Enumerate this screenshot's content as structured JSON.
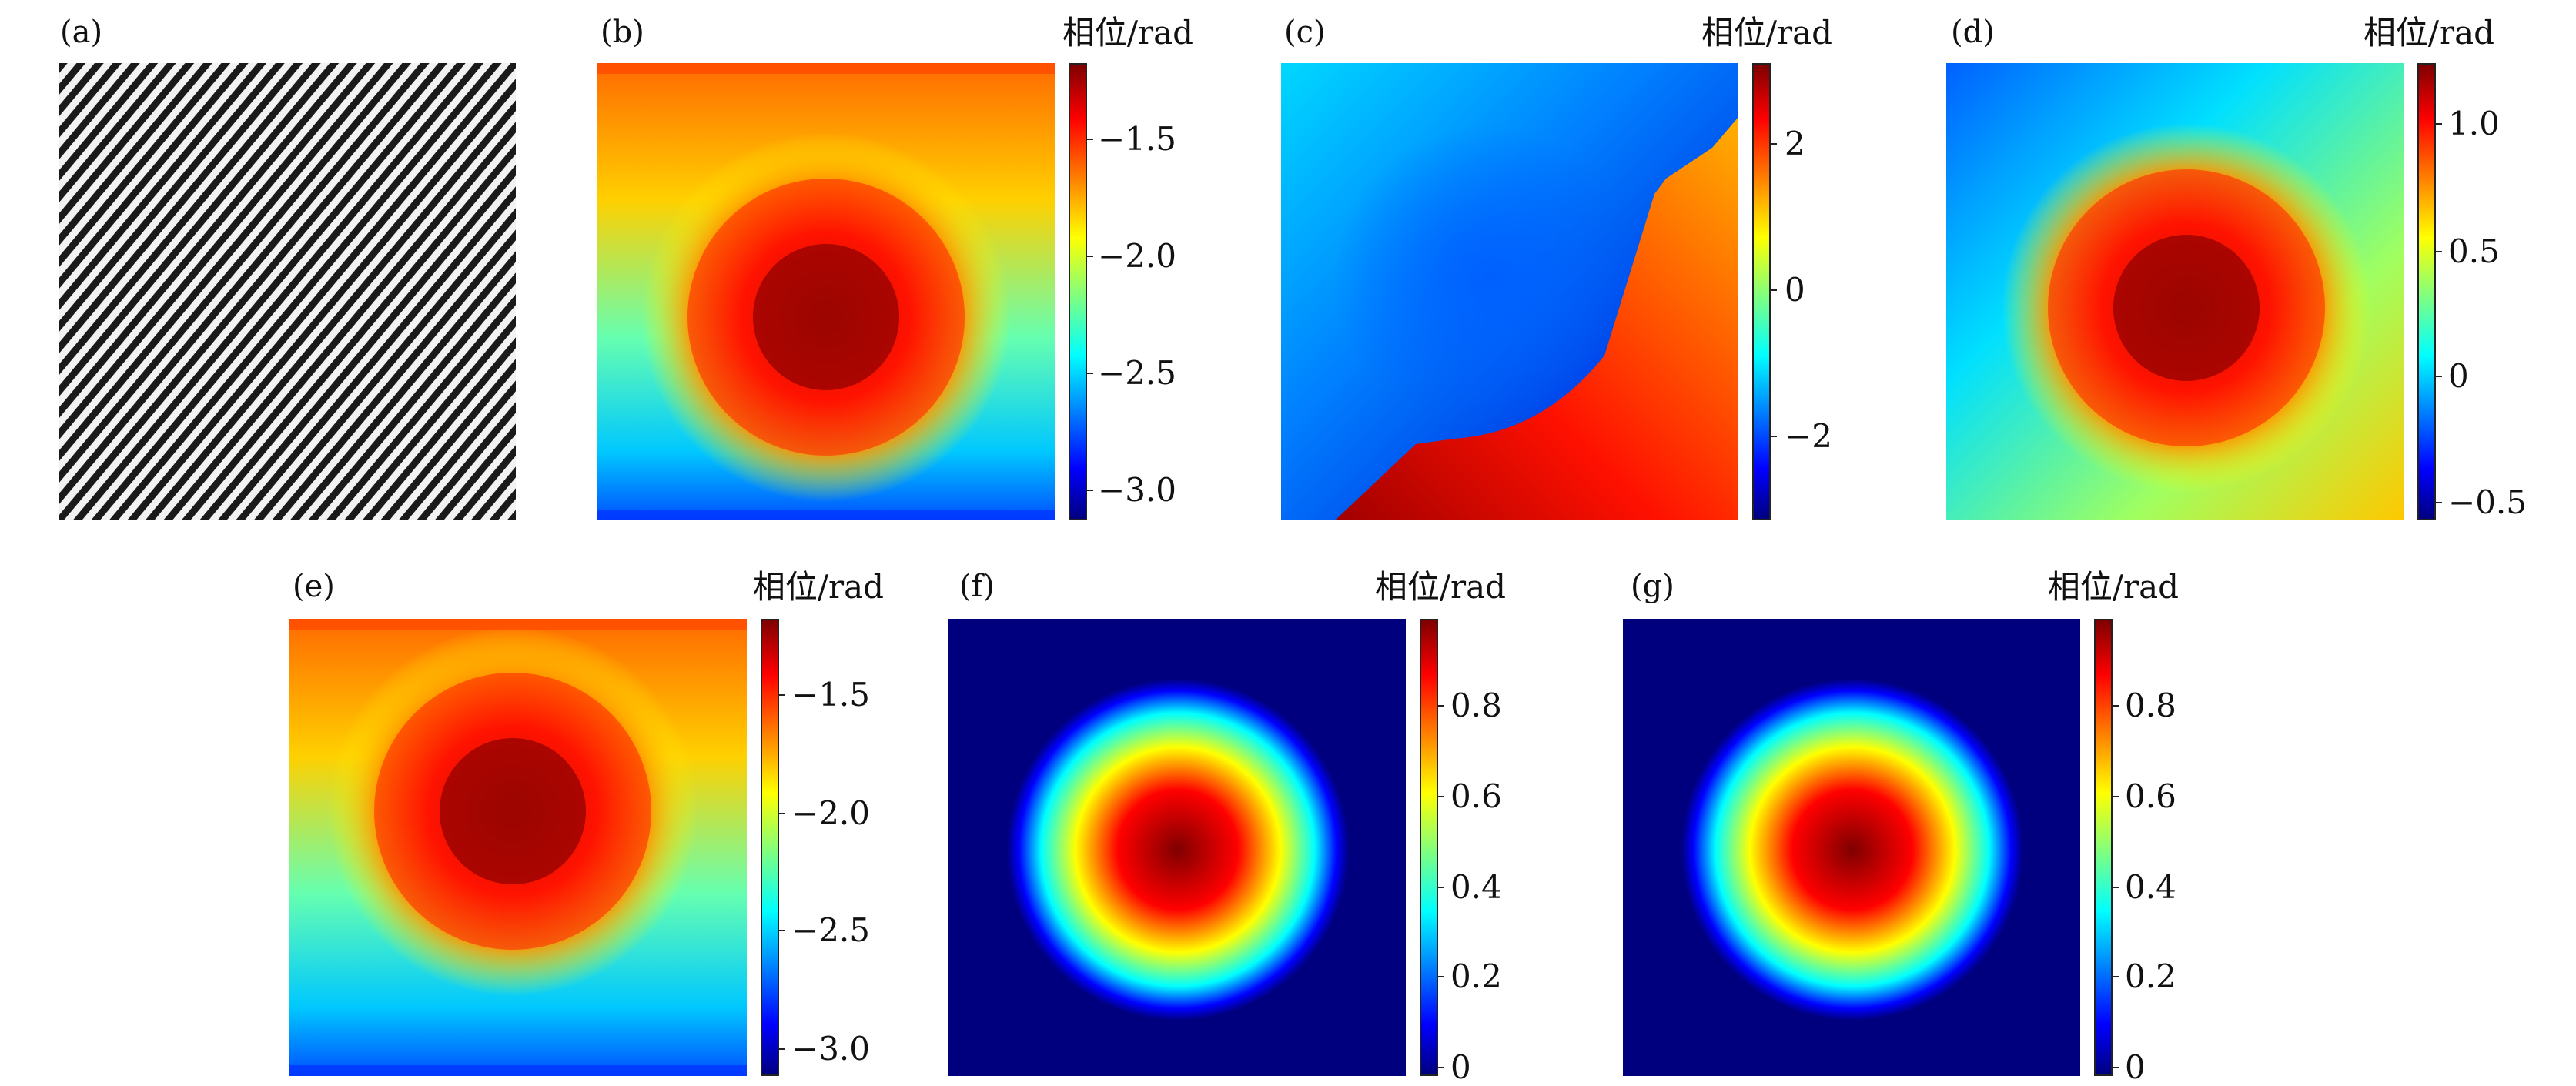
{
  "panels": {
    "a": {
      "label": "(a)"
    },
    "b": {
      "label": "(b)",
      "colorbar_title": "相位/rad",
      "ticks": [
        "−1.5",
        "−2.0",
        "−2.5",
        "−3.0"
      ]
    },
    "c": {
      "label": "(c)",
      "colorbar_title": "相位/rad",
      "ticks": [
        "2",
        "0",
        "−2"
      ]
    },
    "d": {
      "label": "(d)",
      "colorbar_title": "相位/rad",
      "ticks": [
        "1.0",
        "0.5",
        "0",
        "−0.5"
      ]
    },
    "e": {
      "label": "(e)",
      "colorbar_title": "相位/rad",
      "ticks": [
        "−1.5",
        "−2.0",
        "−2.5",
        "−3.0"
      ]
    },
    "f": {
      "label": "(f)",
      "colorbar_title": "相位/rad",
      "ticks": [
        "0.8",
        "0.6",
        "0.4",
        "0.2",
        "0"
      ]
    },
    "g": {
      "label": "(g)",
      "colorbar_title": "相位/rad",
      "ticks": [
        "0.8",
        "0.6",
        "0.4",
        "0.2",
        "0"
      ]
    }
  },
  "colors": {
    "colormap": "jet",
    "jet_stops": [
      "#00007f",
      "#0000ff",
      "#00ffff",
      "#ffff00",
      "#ff0000",
      "#7f0000"
    ]
  }
}
